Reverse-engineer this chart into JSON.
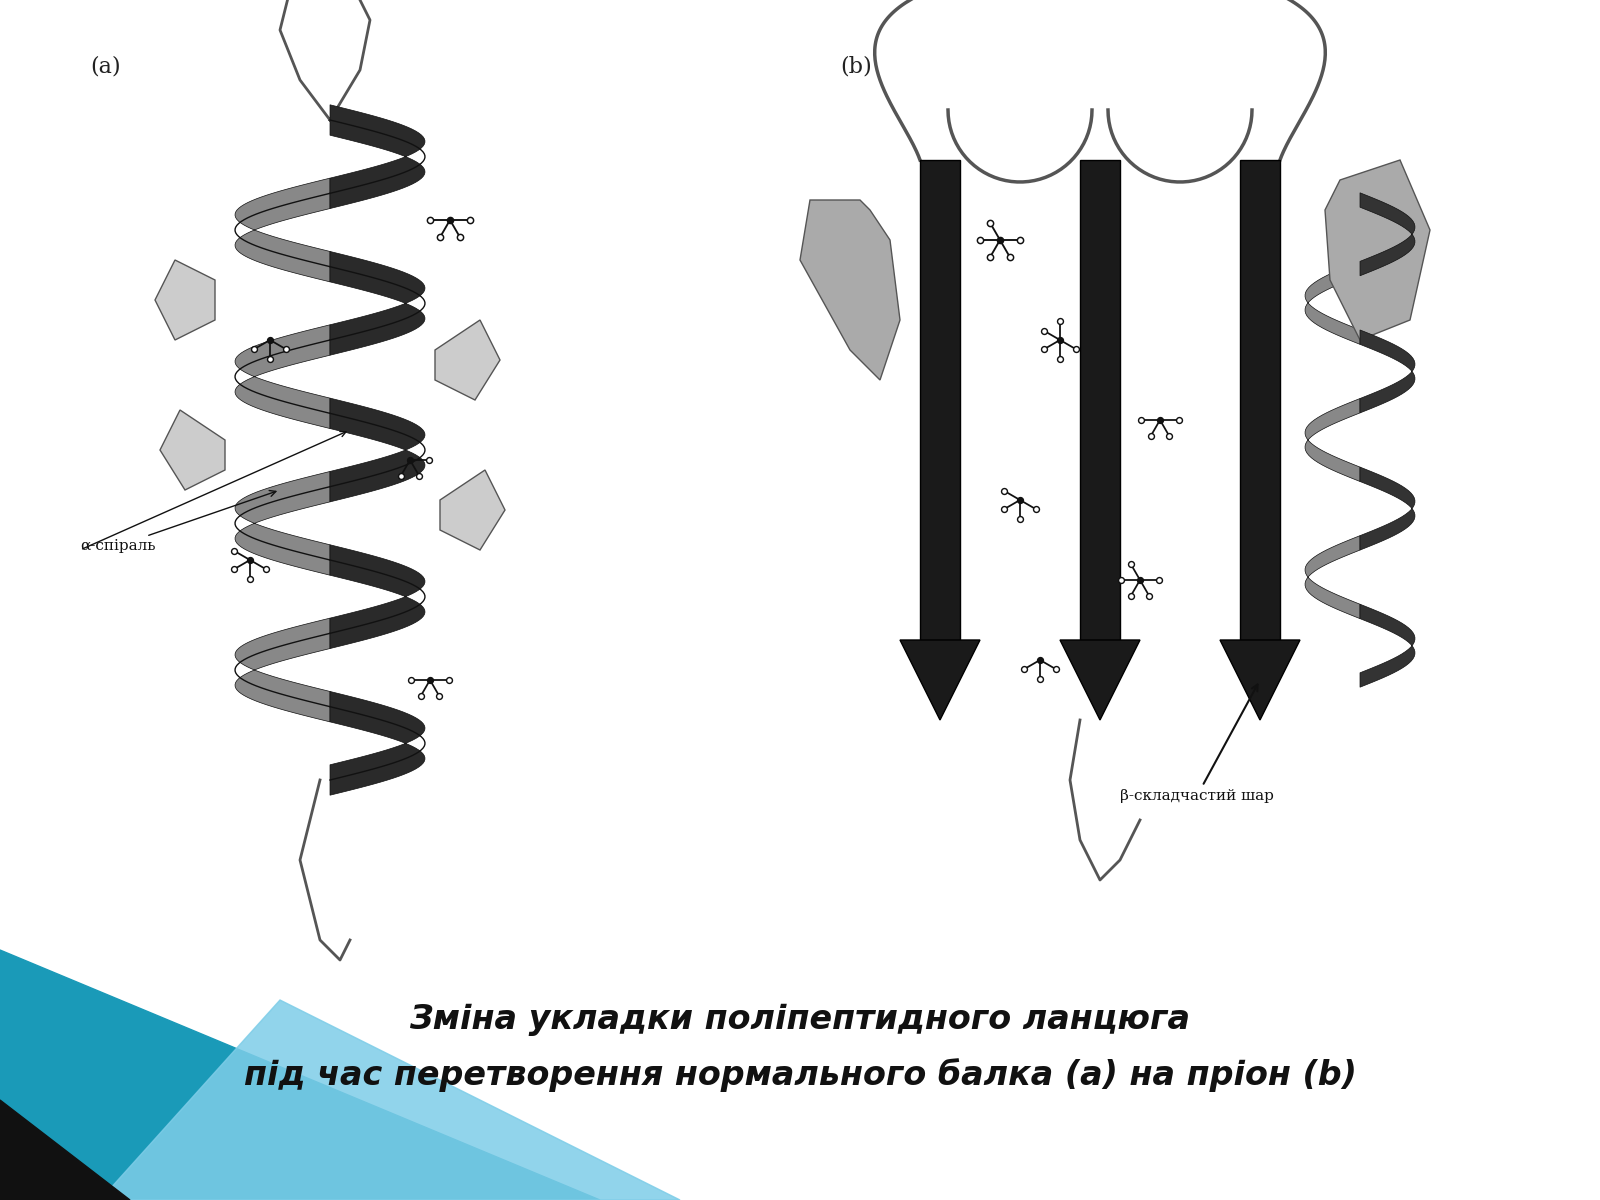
{
  "background_color": "#ffffff",
  "image_label_a": "(a)",
  "image_label_b": "(b)",
  "title_line1": "Зміна укладки поліпептидного ланцюга",
  "title_line2": "під час перетворення нормального балка (a) на пріон (b)",
  "title_fontsize": 24,
  "label_fontsize": 16,
  "alpha_spiral_label": "α-спіраль",
  "beta_label": "β-складчастий шар",
  "teal_color": "#1a9ab8",
  "light_blue_color": "#7ecde8",
  "black_color": "#111111"
}
